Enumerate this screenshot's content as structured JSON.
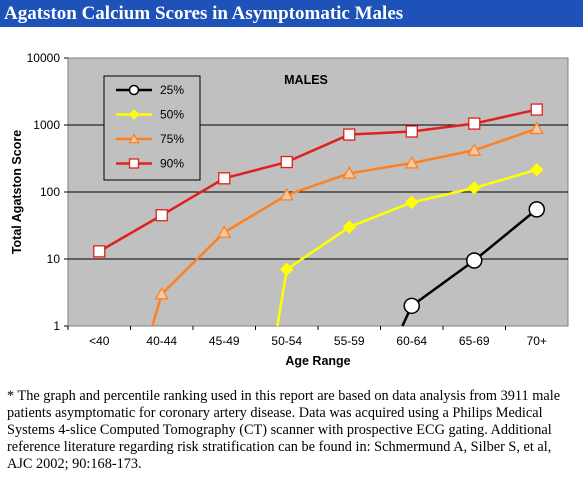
{
  "header": {
    "title": "Agatston Calcium Scores in Asymptomatic Males"
  },
  "chart_data": {
    "type": "line",
    "title": "MALES",
    "xlabel": "Age Range",
    "ylabel": "Total Agatston Score",
    "yscale": "log",
    "ylim": [
      1,
      10000
    ],
    "yticks": [
      "1",
      "10",
      "100",
      "1000",
      "10000"
    ],
    "categories": [
      "<40",
      "40-44",
      "45-49",
      "50-54",
      "55-59",
      "60-64",
      "65-69",
      "70+"
    ],
    "grid": "horizontal",
    "legend_position": "top-left",
    "plot_background": "#c0c0c0",
    "series": [
      {
        "name": "25%",
        "color": "#000000",
        "marker": "circle",
        "values": [
          null,
          null,
          null,
          null,
          null,
          2,
          9.5,
          55
        ],
        "start_from_below": true
      },
      {
        "name": "50%",
        "color": "#ffff00",
        "marker": "diamond",
        "values": [
          null,
          null,
          null,
          7,
          30,
          70,
          115,
          215
        ],
        "start_from_below": true
      },
      {
        "name": "75%",
        "color": "#ff8020",
        "marker": "triangle",
        "values": [
          null,
          3,
          25,
          90,
          190,
          270,
          420,
          880
        ],
        "start_from_below": true
      },
      {
        "name": "90%",
        "color": "#e0201c",
        "marker": "square",
        "values": [
          13,
          45,
          160,
          280,
          720,
          800,
          1050,
          1700
        ],
        "start_from_below": false
      }
    ]
  },
  "footnote": "* The graph and percentile ranking used in this report are based on data analysis from 3911 male patients asymptomatic for coronary artery disease. Data was acquired using a Philips Medical Systems 4-slice Computed Tomography (CT) scanner with prospective ECG gating. Additional reference literature regarding risk stratification can be found in: Schmermund A, Silber S, et al, AJC 2002; 90:168-173."
}
